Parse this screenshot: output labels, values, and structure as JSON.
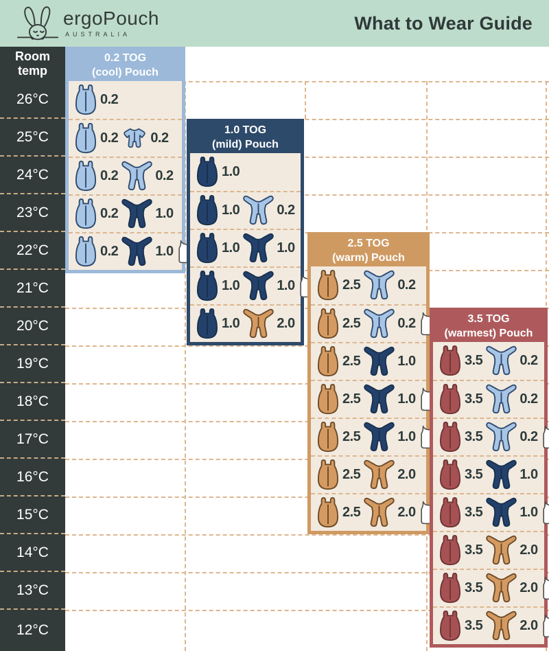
{
  "header": {
    "brand": "ergoPouch",
    "brand_sub": "AUSTRALIA",
    "title": "What to Wear Guide"
  },
  "temp_column": {
    "header": "Room temp",
    "temps": [
      "26°C",
      "25°C",
      "24°C",
      "23°C",
      "22°C",
      "21°C",
      "20°C",
      "19°C",
      "18°C",
      "17°C",
      "16°C",
      "15°C",
      "14°C",
      "13°C",
      "12°C"
    ]
  },
  "colors": {
    "topbar_bg": "#bedccb",
    "temp_col_bg": "#323a3a",
    "panel_content_bg": "#f2eadf",
    "dashed_line": "#ddb68f",
    "tog_text": "#2e3b3b"
  },
  "icon_colors": {
    "lightblue": {
      "fill": "#a9c5e5",
      "stroke": "#2c4a6e"
    },
    "navy": {
      "fill": "#24416b",
      "stroke": "#16304f"
    },
    "tan": {
      "fill": "#d49a61",
      "stroke": "#6b4a28"
    },
    "maroon": {
      "fill": "#a65153",
      "stroke": "#6e3435"
    },
    "white": {
      "fill": "#ffffff",
      "stroke": "#4d4d4d"
    }
  },
  "panels": [
    {
      "name": "0.2-tog-cool-pouch",
      "title_line1": "0.2 TOG",
      "title_line2": "(cool) Pouch",
      "color": "#9cb9da",
      "rows": [
        {
          "temp": "26°C",
          "items": [
            {
              "icon": "pouch",
              "color": "lightblue",
              "tog": "0.2"
            }
          ]
        },
        {
          "temp": "25°C",
          "items": [
            {
              "icon": "pouch",
              "color": "lightblue",
              "tog": "0.2"
            },
            {
              "icon": "romper",
              "color": "lightblue",
              "tog": "0.2"
            }
          ]
        },
        {
          "temp": "24°C",
          "items": [
            {
              "icon": "pouch",
              "color": "lightblue",
              "tog": "0.2"
            },
            {
              "icon": "sleepsuit",
              "color": "lightblue",
              "tog": "0.2"
            }
          ]
        },
        {
          "temp": "23°C",
          "items": [
            {
              "icon": "pouch",
              "color": "lightblue",
              "tog": "0.2"
            },
            {
              "icon": "sleepsuit",
              "color": "navy",
              "tog": "1.0"
            }
          ]
        },
        {
          "temp": "22°C",
          "items": [
            {
              "icon": "pouch",
              "color": "lightblue",
              "tog": "0.2"
            },
            {
              "icon": "sleepsuit",
              "color": "navy",
              "tog": "1.0"
            },
            {
              "icon": "singlet",
              "color": "white",
              "tog": ""
            }
          ]
        }
      ]
    },
    {
      "name": "1.0-tog-mild-pouch",
      "title_line1": "1.0 TOG",
      "title_line2": "(mild) Pouch",
      "color": "#2e4a6a",
      "rows": [
        {
          "temp": "24°C",
          "items": [
            {
              "icon": "pouch",
              "color": "navy",
              "tog": "1.0"
            }
          ]
        },
        {
          "temp": "23°C",
          "items": [
            {
              "icon": "pouch",
              "color": "navy",
              "tog": "1.0"
            },
            {
              "icon": "sleepsuit",
              "color": "lightblue",
              "tog": "0.2"
            }
          ]
        },
        {
          "temp": "22°C",
          "items": [
            {
              "icon": "pouch",
              "color": "navy",
              "tog": "1.0"
            },
            {
              "icon": "sleepsuit",
              "color": "navy",
              "tog": "1.0"
            }
          ]
        },
        {
          "temp": "21°C",
          "items": [
            {
              "icon": "pouch",
              "color": "navy",
              "tog": "1.0"
            },
            {
              "icon": "sleepsuit",
              "color": "navy",
              "tog": "1.0"
            },
            {
              "icon": "singlet",
              "color": "white",
              "tog": ""
            }
          ]
        },
        {
          "temp": "20°C",
          "items": [
            {
              "icon": "pouch",
              "color": "navy",
              "tog": "1.0"
            },
            {
              "icon": "sleepsuit",
              "color": "tan",
              "tog": "2.0"
            }
          ]
        }
      ]
    },
    {
      "name": "2.5-tog-warm-pouch",
      "title_line1": "2.5 TOG",
      "title_line2": "(warm) Pouch",
      "color": "#cf9a62",
      "rows": [
        {
          "temp": "21°C",
          "items": [
            {
              "icon": "pouch",
              "color": "tan",
              "tog": "2.5"
            },
            {
              "icon": "sleepsuit",
              "color": "lightblue",
              "tog": "0.2"
            }
          ]
        },
        {
          "temp": "20°C",
          "items": [
            {
              "icon": "pouch",
              "color": "tan",
              "tog": "2.5"
            },
            {
              "icon": "sleepsuit",
              "color": "lightblue",
              "tog": "0.2"
            },
            {
              "icon": "singlet",
              "color": "white",
              "tog": ""
            }
          ]
        },
        {
          "temp": "19°C",
          "items": [
            {
              "icon": "pouch",
              "color": "tan",
              "tog": "2.5"
            },
            {
              "icon": "sleepsuit",
              "color": "navy",
              "tog": "1.0"
            }
          ]
        },
        {
          "temp": "18°C",
          "items": [
            {
              "icon": "pouch",
              "color": "tan",
              "tog": "2.5"
            },
            {
              "icon": "sleepsuit",
              "color": "navy",
              "tog": "1.0"
            },
            {
              "icon": "singlet",
              "color": "white",
              "tog": ""
            }
          ]
        },
        {
          "temp": "17°C",
          "items": [
            {
              "icon": "pouch",
              "color": "tan",
              "tog": "2.5"
            },
            {
              "icon": "sleepsuit",
              "color": "navy",
              "tog": "1.0"
            },
            {
              "icon": "singlet",
              "color": "white",
              "tog": ""
            }
          ]
        },
        {
          "temp": "16°C",
          "items": [
            {
              "icon": "pouch",
              "color": "tan",
              "tog": "2.5"
            },
            {
              "icon": "sleepsuit",
              "color": "tan",
              "tog": "2.0"
            }
          ]
        },
        {
          "temp": "15°C",
          "items": [
            {
              "icon": "pouch",
              "color": "tan",
              "tog": "2.5"
            },
            {
              "icon": "sleepsuit",
              "color": "tan",
              "tog": "2.0"
            },
            {
              "icon": "singlet",
              "color": "white",
              "tog": ""
            }
          ]
        }
      ]
    },
    {
      "name": "3.5-tog-warmest-pouch",
      "title_line1": "3.5 TOG",
      "title_line2": "(warmest) Pouch",
      "color": "#ae5a5c",
      "rows": [
        {
          "temp": "19°C",
          "items": [
            {
              "icon": "pouch",
              "color": "maroon",
              "tog": "3.5"
            },
            {
              "icon": "sleepsuit",
              "color": "lightblue",
              "tog": "0.2"
            }
          ]
        },
        {
          "temp": "18°C",
          "items": [
            {
              "icon": "pouch",
              "color": "maroon",
              "tog": "3.5"
            },
            {
              "icon": "sleepsuit",
              "color": "lightblue",
              "tog": "0.2"
            }
          ]
        },
        {
          "temp": "17°C",
          "items": [
            {
              "icon": "pouch",
              "color": "maroon",
              "tog": "3.5"
            },
            {
              "icon": "sleepsuit",
              "color": "lightblue",
              "tog": "0.2"
            },
            {
              "icon": "singlet",
              "color": "white",
              "tog": ""
            }
          ]
        },
        {
          "temp": "16°C",
          "items": [
            {
              "icon": "pouch",
              "color": "maroon",
              "tog": "3.5"
            },
            {
              "icon": "sleepsuit",
              "color": "navy",
              "tog": "1.0"
            }
          ]
        },
        {
          "temp": "15°C",
          "items": [
            {
              "icon": "pouch",
              "color": "maroon",
              "tog": "3.5"
            },
            {
              "icon": "sleepsuit",
              "color": "navy",
              "tog": "1.0"
            },
            {
              "icon": "singlet",
              "color": "white",
              "tog": ""
            }
          ]
        },
        {
          "temp": "14°C",
          "items": [
            {
              "icon": "pouch",
              "color": "maroon",
              "tog": "3.5"
            },
            {
              "icon": "sleepsuit",
              "color": "tan",
              "tog": "2.0"
            }
          ]
        },
        {
          "temp": "13°C",
          "items": [
            {
              "icon": "pouch",
              "color": "maroon",
              "tog": "3.5"
            },
            {
              "icon": "sleepsuit",
              "color": "tan",
              "tog": "2.0"
            },
            {
              "icon": "singlet",
              "color": "white",
              "tog": ""
            }
          ]
        },
        {
          "temp": "12°C",
          "items": [
            {
              "icon": "pouch",
              "color": "maroon",
              "tog": "3.5"
            },
            {
              "icon": "sleepsuit",
              "color": "tan",
              "tog": "2.0"
            },
            {
              "icon": "singlet",
              "color": "white",
              "tog": ""
            }
          ]
        }
      ]
    }
  ]
}
